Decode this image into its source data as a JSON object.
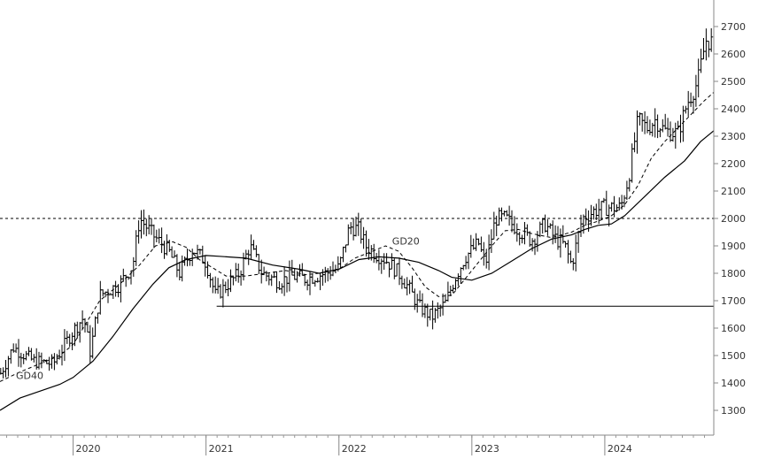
{
  "chart_data": {
    "type": "ohlc",
    "y_ticks": [
      1300,
      1400,
      1500,
      1600,
      1700,
      1800,
      1900,
      2000,
      2100,
      2200,
      2300,
      2400,
      2500,
      2600,
      2700
    ],
    "x_ticks": [
      "2020",
      "2021",
      "2022",
      "2023",
      "2024"
    ],
    "ylim": [
      1200,
      2740
    ],
    "xlim": [
      2019.45,
      2024.82
    ],
    "grid": false,
    "reference_lines": [
      {
        "type": "dashed",
        "value": 2000
      },
      {
        "type": "solid",
        "value": 1680,
        "from": 2021.08,
        "to": 2024.82
      }
    ],
    "annotations": [
      {
        "text": "GD40",
        "x": 2019.57,
        "y": 1415
      },
      {
        "text": "GD20",
        "x": 2022.4,
        "y": 1905
      }
    ],
    "ma_points": {
      "gd20": [
        [
          2019.45,
          1405
        ],
        [
          2019.6,
          1440
        ],
        [
          2019.75,
          1470
        ],
        [
          2019.9,
          1500
        ],
        [
          2020.0,
          1540
        ],
        [
          2020.1,
          1620
        ],
        [
          2020.2,
          1700
        ],
        [
          2020.35,
          1760
        ],
        [
          2020.5,
          1830
        ],
        [
          2020.62,
          1900
        ],
        [
          2020.75,
          1915
        ],
        [
          2020.85,
          1895
        ],
        [
          2020.95,
          1850
        ],
        [
          2021.05,
          1820
        ],
        [
          2021.15,
          1790
        ],
        [
          2021.3,
          1790
        ],
        [
          2021.45,
          1800
        ],
        [
          2021.6,
          1810
        ],
        [
          2021.75,
          1795
        ],
        [
          2021.85,
          1800
        ],
        [
          2022.0,
          1815
        ],
        [
          2022.12,
          1855
        ],
        [
          2022.25,
          1880
        ],
        [
          2022.35,
          1900
        ],
        [
          2022.45,
          1880
        ],
        [
          2022.55,
          1820
        ],
        [
          2022.65,
          1750
        ],
        [
          2022.75,
          1715
        ],
        [
          2022.85,
          1720
        ],
        [
          2022.95,
          1780
        ],
        [
          2023.05,
          1840
        ],
        [
          2023.15,
          1900
        ],
        [
          2023.25,
          1955
        ],
        [
          2023.35,
          1960
        ],
        [
          2023.45,
          1945
        ],
        [
          2023.6,
          1930
        ],
        [
          2023.75,
          1950
        ],
        [
          2023.85,
          1975
        ],
        [
          2023.95,
          1990
        ],
        [
          2024.05,
          2010
        ],
        [
          2024.15,
          2050
        ],
        [
          2024.25,
          2120
        ],
        [
          2024.35,
          2220
        ],
        [
          2024.45,
          2280
        ],
        [
          2024.55,
          2330
        ],
        [
          2024.65,
          2380
        ],
        [
          2024.75,
          2430
        ],
        [
          2024.82,
          2460
        ]
      ],
      "gd40": [
        [
          2019.45,
          1300
        ],
        [
          2019.6,
          1345
        ],
        [
          2019.75,
          1370
        ],
        [
          2019.9,
          1395
        ],
        [
          2020.0,
          1420
        ],
        [
          2020.15,
          1480
        ],
        [
          2020.3,
          1570
        ],
        [
          2020.45,
          1670
        ],
        [
          2020.6,
          1760
        ],
        [
          2020.72,
          1820
        ],
        [
          2020.85,
          1850
        ],
        [
          2021.0,
          1865
        ],
        [
          2021.1,
          1862
        ],
        [
          2021.3,
          1855
        ],
        [
          2021.5,
          1830
        ],
        [
          2021.7,
          1815
        ],
        [
          2021.85,
          1800
        ],
        [
          2022.0,
          1815
        ],
        [
          2022.15,
          1850
        ],
        [
          2022.3,
          1860
        ],
        [
          2022.45,
          1855
        ],
        [
          2022.6,
          1840
        ],
        [
          2022.75,
          1810
        ],
        [
          2022.85,
          1785
        ],
        [
          2023.0,
          1775
        ],
        [
          2023.15,
          1800
        ],
        [
          2023.3,
          1845
        ],
        [
          2023.45,
          1890
        ],
        [
          2023.6,
          1925
        ],
        [
          2023.75,
          1940
        ],
        [
          2023.85,
          1960
        ],
        [
          2023.95,
          1975
        ],
        [
          2024.05,
          1980
        ],
        [
          2024.15,
          2010
        ],
        [
          2024.3,
          2080
        ],
        [
          2024.45,
          2150
        ],
        [
          2024.6,
          2210
        ],
        [
          2024.72,
          2280
        ],
        [
          2024.82,
          2320
        ]
      ]
    },
    "price_anchors": [
      [
        2019.45,
        1430
      ],
      [
        2019.55,
        1530
      ],
      [
        2019.7,
        1480
      ],
      [
        2019.85,
        1470
      ],
      [
        2020.0,
        1590
      ],
      [
        2020.08,
        1640
      ],
      [
        2020.13,
        1510
      ],
      [
        2020.2,
        1720
      ],
      [
        2020.35,
        1760
      ],
      [
        2020.45,
        1830
      ],
      [
        2020.5,
        2000
      ],
      [
        2020.6,
        1940
      ],
      [
        2020.72,
        1880
      ],
      [
        2020.8,
        1800
      ],
      [
        2020.9,
        1890
      ],
      [
        2021.0,
        1840
      ],
      [
        2021.07,
        1720
      ],
      [
        2021.12,
        1740
      ],
      [
        2021.25,
        1800
      ],
      [
        2021.33,
        1900
      ],
      [
        2021.42,
        1800
      ],
      [
        2021.55,
        1770
      ],
      [
        2021.65,
        1790
      ],
      [
        2021.75,
        1780
      ],
      [
        2021.9,
        1800
      ],
      [
        2022.0,
        1820
      ],
      [
        2022.08,
        1970
      ],
      [
        2022.15,
        1960
      ],
      [
        2022.2,
        1900
      ],
      [
        2022.28,
        1870
      ],
      [
        2022.35,
        1850
      ],
      [
        2022.45,
        1800
      ],
      [
        2022.52,
        1750
      ],
      [
        2022.6,
        1680
      ],
      [
        2022.7,
        1640
      ],
      [
        2022.8,
        1690
      ],
      [
        2022.88,
        1790
      ],
      [
        2022.95,
        1860
      ],
      [
        2023.05,
        1910
      ],
      [
        2023.1,
        1830
      ],
      [
        2023.18,
        2000
      ],
      [
        2023.25,
        2000
      ],
      [
        2023.35,
        1960
      ],
      [
        2023.45,
        1920
      ],
      [
        2023.55,
        1980
      ],
      [
        2023.62,
        1930
      ],
      [
        2023.7,
        1900
      ],
      [
        2023.75,
        1830
      ],
      [
        2023.83,
        2000
      ],
      [
        2023.93,
        2030
      ],
      [
        2024.0,
        2040
      ],
      [
        2024.12,
        2040
      ],
      [
        2024.18,
        2150
      ],
      [
        2024.25,
        2360
      ],
      [
        2024.32,
        2330
      ],
      [
        2024.38,
        2360
      ],
      [
        2024.45,
        2320
      ],
      [
        2024.55,
        2310
      ],
      [
        2024.62,
        2420
      ],
      [
        2024.7,
        2500
      ],
      [
        2024.76,
        2650
      ],
      [
        2024.82,
        2640
      ]
    ]
  }
}
